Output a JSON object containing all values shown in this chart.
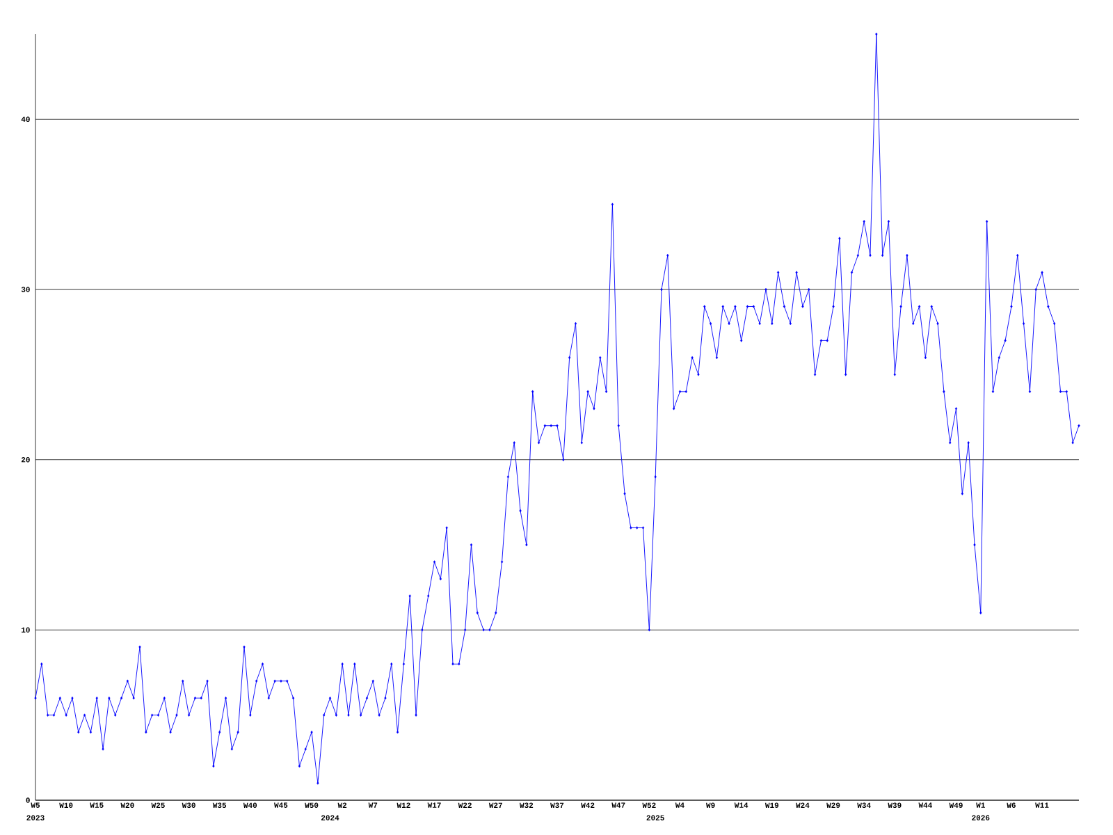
{
  "chart_data": {
    "type": "line",
    "color": "#0000ff",
    "marker": "diamond",
    "grid": "y",
    "categories": [
      "W5",
      null,
      null,
      null,
      null,
      "W10",
      null,
      null,
      null,
      null,
      "W15",
      null,
      null,
      null,
      null,
      "W20",
      null,
      null,
      null,
      null,
      "W25",
      null,
      null,
      null,
      null,
      "W30",
      null,
      null,
      null,
      null,
      "W35",
      null,
      null,
      null,
      null,
      "W40",
      null,
      null,
      null,
      null,
      "W45",
      null,
      null,
      null,
      null,
      "W50",
      null,
      null,
      null,
      null,
      "W2",
      null,
      null,
      null,
      null,
      "W7",
      null,
      null,
      null,
      null,
      "W12",
      null,
      null,
      null,
      null,
      "W17",
      null,
      null,
      null,
      null,
      "W22",
      null,
      null,
      null,
      null,
      "W27",
      null,
      null,
      null,
      null,
      "W32",
      null,
      null,
      null,
      null,
      "W37",
      null,
      null,
      null,
      null,
      "W42",
      null,
      null,
      null,
      null,
      "W47",
      null,
      null,
      null,
      null,
      "W52",
      null,
      null,
      null,
      null,
      "W4",
      null,
      null,
      null,
      null,
      "W9",
      null,
      null,
      null,
      null,
      "W14",
      null,
      null,
      null,
      null,
      "W19",
      null,
      null,
      null,
      null,
      "W24",
      null,
      null,
      null,
      null,
      "W29",
      null,
      null,
      null,
      null,
      "W34",
      null,
      null,
      null,
      null,
      "W39",
      null,
      null,
      null,
      null,
      "W44",
      null,
      null,
      null,
      null,
      "W49",
      null,
      null,
      null,
      "W1",
      null,
      null,
      null,
      null,
      "W6",
      null,
      null,
      null,
      null,
      "W11",
      null,
      null,
      null,
      null,
      null,
      null
    ],
    "values": [
      6,
      8,
      5,
      5,
      6,
      5,
      6,
      4,
      5,
      4,
      6,
      3,
      6,
      5,
      6,
      7,
      6,
      9,
      4,
      5,
      5,
      6,
      4,
      5,
      7,
      5,
      6,
      6,
      7,
      2,
      4,
      6,
      3,
      4,
      9,
      5,
      7,
      8,
      6,
      7,
      7,
      7,
      6,
      2,
      3,
      4,
      1,
      5,
      6,
      5,
      8,
      5,
      8,
      5,
      6,
      7,
      5,
      6,
      8,
      4,
      8,
      12,
      5,
      10,
      12,
      14,
      13,
      16,
      8,
      8,
      10,
      15,
      11,
      10,
      10,
      11,
      14,
      19,
      21,
      17,
      15,
      24,
      21,
      22,
      22,
      22,
      20,
      26,
      28,
      21,
      24,
      23,
      26,
      24,
      35,
      22,
      18,
      16,
      16,
      16,
      10,
      19,
      30,
      32,
      23,
      24,
      24,
      26,
      25,
      29,
      28,
      26,
      29,
      28,
      29,
      27,
      29,
      29,
      28,
      30,
      28,
      31,
      29,
      28,
      31,
      29,
      30,
      25,
      27,
      27,
      29,
      33,
      25,
      31,
      32,
      34,
      32,
      45,
      32,
      34,
      25,
      29,
      32,
      28,
      29,
      26,
      29,
      28,
      24,
      21,
      23,
      18,
      21,
      15,
      11,
      34,
      24,
      26,
      27,
      29,
      32,
      28,
      24,
      30,
      31,
      29,
      28,
      24,
      24,
      21,
      22
    ],
    "ylim": [
      0,
      45
    ],
    "yticks": [
      0,
      10,
      20,
      30,
      40
    ],
    "annotations": [
      "2023",
      "2024",
      "2025",
      "2026"
    ]
  }
}
